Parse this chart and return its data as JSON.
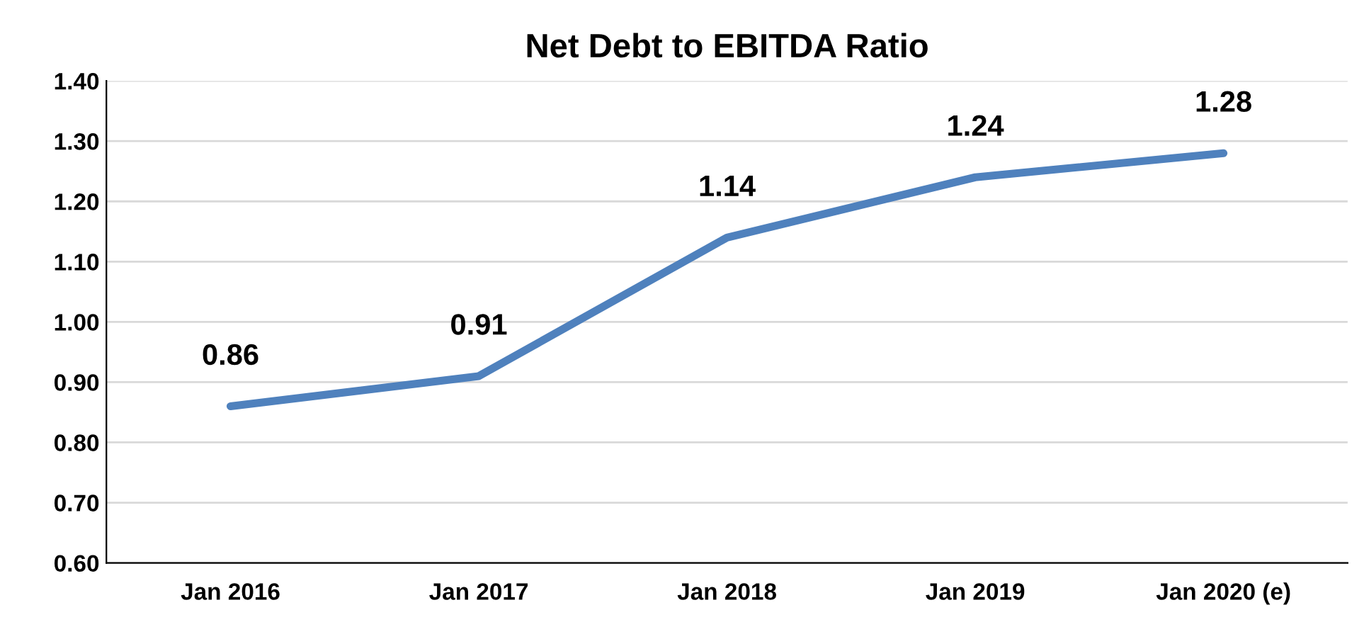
{
  "chart_data": {
    "type": "line",
    "title": "Net Debt to EBITDA Ratio",
    "categories": [
      "Jan 2016",
      "Jan 2017",
      "Jan 2018",
      "Jan 2019",
      "Jan 2020 (e)"
    ],
    "series": [
      {
        "color": "#4f81bd",
        "values": [
          0.86,
          0.91,
          1.14,
          1.24,
          1.28
        ]
      }
    ],
    "ylim": [
      0.6,
      1.4
    ],
    "yticks": [
      {
        "value": 0.6,
        "label": "0.60"
      },
      {
        "value": 0.7,
        "label": "0.70"
      },
      {
        "value": 0.8,
        "label": "0.80"
      },
      {
        "value": 0.9,
        "label": "0.90"
      },
      {
        "value": 1.0,
        "label": "1.00"
      },
      {
        "value": 1.1,
        "label": "1.10"
      },
      {
        "value": 1.2,
        "label": "1.20"
      },
      {
        "value": 1.3,
        "label": "1.30"
      },
      {
        "value": 1.4,
        "label": "1.40"
      }
    ],
    "grid": "y",
    "data_labels": true,
    "marker": "none",
    "line_style": "solid",
    "legend": false
  }
}
